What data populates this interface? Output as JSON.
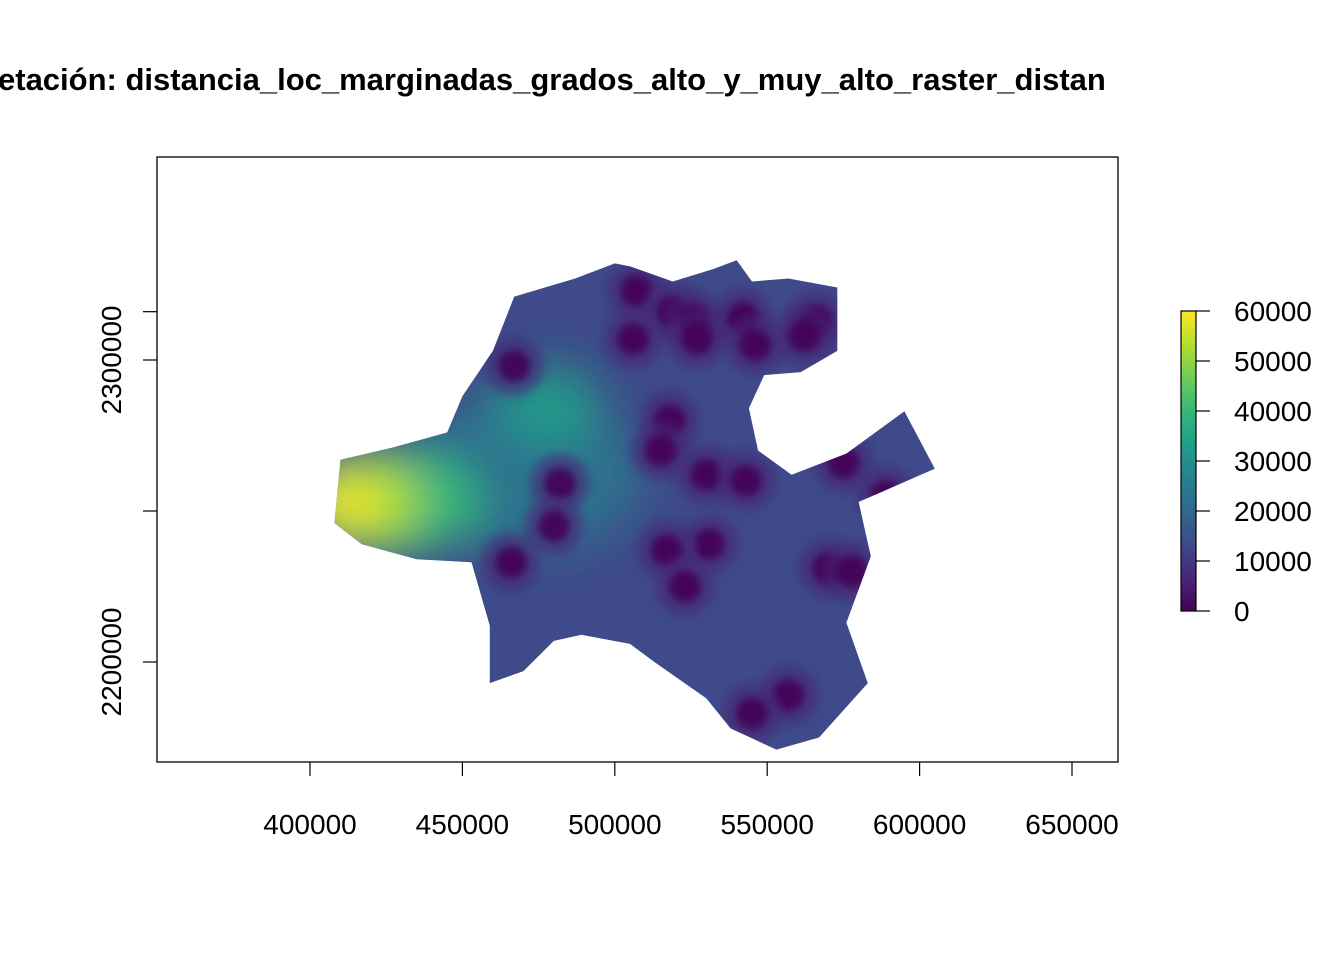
{
  "title": "etación:  distancia_loc_marginadas_grados_alto_y_muy_alto_raster_distan",
  "x_axis": {
    "ticks": [
      {
        "value": 400000,
        "label": "400000"
      },
      {
        "value": 450000,
        "label": "450000"
      },
      {
        "value": 500000,
        "label": "500000"
      },
      {
        "value": 550000,
        "label": "550000"
      },
      {
        "value": 600000,
        "label": "600000"
      },
      {
        "value": 650000,
        "label": "650000"
      }
    ],
    "range": [
      350000,
      666000
    ]
  },
  "y_axis": {
    "ticks": [
      {
        "value": 2316000,
        "label": ""
      },
      {
        "value": 2300000,
        "label": "2300000"
      },
      {
        "value": 2250000,
        "label": ""
      },
      {
        "value": 2200000,
        "label": "2200000"
      }
    ],
    "range": [
      2167000,
      2333000
    ]
  },
  "legend": {
    "position": "right",
    "palette": "viridis",
    "colors": [
      "#440154",
      "#482878",
      "#3E4A89",
      "#31688E",
      "#26828E",
      "#1F9E89",
      "#35B779",
      "#6DCD59",
      "#B4DE2C",
      "#FDE725"
    ],
    "min": 0,
    "max": 60000,
    "ticks": [
      {
        "value": 0,
        "label": "0"
      },
      {
        "value": 10000,
        "label": "10000"
      },
      {
        "value": 20000,
        "label": "20000"
      },
      {
        "value": 30000,
        "label": "30000"
      },
      {
        "value": 40000,
        "label": "40000"
      },
      {
        "value": 50000,
        "label": "50000"
      },
      {
        "value": 60000,
        "label": "60000"
      }
    ]
  },
  "map_data": {
    "crs_units": "m",
    "outline": [
      [
        410000,
        2267000
      ],
      [
        427000,
        2271000
      ],
      [
        445000,
        2276000
      ],
      [
        450000,
        2288000
      ],
      [
        460000,
        2303000
      ],
      [
        467000,
        2321000
      ],
      [
        487000,
        2327000
      ],
      [
        500000,
        2332000
      ],
      [
        505000,
        2331000
      ],
      [
        519000,
        2326000
      ],
      [
        532000,
        2330000
      ],
      [
        540000,
        2333000
      ],
      [
        545000,
        2326000
      ],
      [
        557000,
        2327000
      ],
      [
        573000,
        2324000
      ],
      [
        573000,
        2303000
      ],
      [
        561000,
        2296000
      ],
      [
        549000,
        2295000
      ],
      [
        544000,
        2284000
      ],
      [
        547000,
        2270000
      ],
      [
        558000,
        2262000
      ],
      [
        576000,
        2269000
      ],
      [
        595000,
        2283000
      ],
      [
        605000,
        2264000
      ],
      [
        580000,
        2253000
      ],
      [
        584000,
        2235000
      ],
      [
        576000,
        2213000
      ],
      [
        583000,
        2193000
      ],
      [
        567000,
        2175000
      ],
      [
        553000,
        2171000
      ],
      [
        538000,
        2178000
      ],
      [
        530000,
        2188000
      ],
      [
        513000,
        2200000
      ],
      [
        505000,
        2206000
      ],
      [
        489000,
        2209000
      ],
      [
        480000,
        2207000
      ],
      [
        470000,
        2197000
      ],
      [
        459000,
        2193000
      ],
      [
        459000,
        2212000
      ],
      [
        453000,
        2233000
      ],
      [
        435000,
        2234000
      ],
      [
        417000,
        2239000
      ],
      [
        408000,
        2246000
      ]
    ],
    "low_distance_centers": [
      [
        507000,
        2323000
      ],
      [
        519000,
        2316000
      ],
      [
        526000,
        2313000
      ],
      [
        542000,
        2314000
      ],
      [
        566000,
        2313000
      ],
      [
        506000,
        2307000
      ],
      [
        527000,
        2307000
      ],
      [
        546000,
        2305000
      ],
      [
        562000,
        2308000
      ],
      [
        467000,
        2298000
      ],
      [
        518000,
        2280000
      ],
      [
        515000,
        2270000
      ],
      [
        530000,
        2262000
      ],
      [
        482000,
        2259000
      ],
      [
        480000,
        2245000
      ],
      [
        543000,
        2260000
      ],
      [
        531000,
        2239000
      ],
      [
        517000,
        2237000
      ],
      [
        523000,
        2225000
      ],
      [
        466000,
        2233000
      ],
      [
        570000,
        2231000
      ],
      [
        557000,
        2189000
      ],
      [
        545000,
        2183000
      ],
      [
        578000,
        2230000
      ],
      [
        589000,
        2255000
      ],
      [
        575000,
        2266000
      ]
    ],
    "high_distance_peak": [
      412000,
      2253000
    ]
  }
}
